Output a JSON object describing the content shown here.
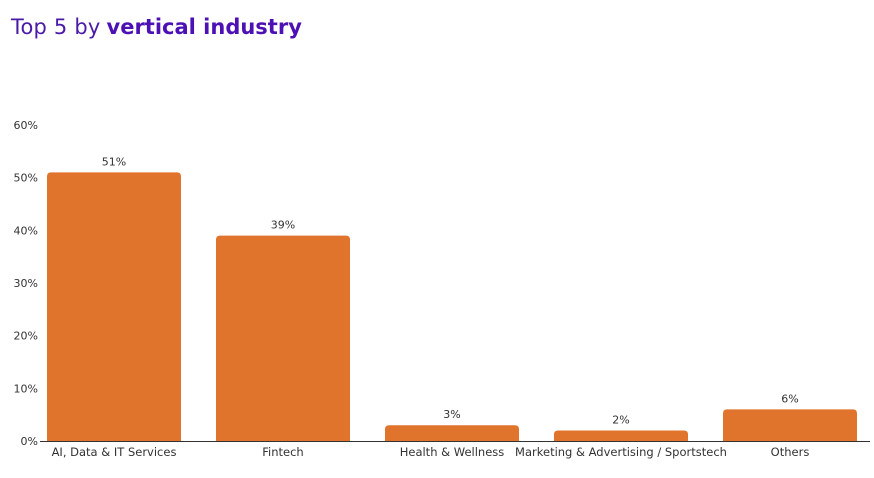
{
  "title": {
    "prefix": "Top 5 by",
    "emphasis": "vertical industry"
  },
  "chart_data": {
    "type": "bar",
    "categories": [
      "AI, Data & IT Services",
      "Fintech",
      "Health & Wellness",
      "Marketing & Advertising / Sportstech",
      "Others"
    ],
    "values": [
      51,
      39,
      3,
      2,
      6
    ],
    "data_labels": [
      "51%",
      "39%",
      "3%",
      "2%",
      "6%"
    ],
    "ylim": [
      0,
      60
    ],
    "yticks": [
      0,
      10,
      20,
      30,
      40,
      50,
      60
    ],
    "ytick_labels": [
      "0%",
      "10%",
      "20%",
      "30%",
      "40%",
      "50%",
      "60%"
    ],
    "xlabel": "",
    "ylabel": "",
    "grid": false,
    "colors": {
      "bar": "#e0742d",
      "axis": "#333333"
    }
  }
}
